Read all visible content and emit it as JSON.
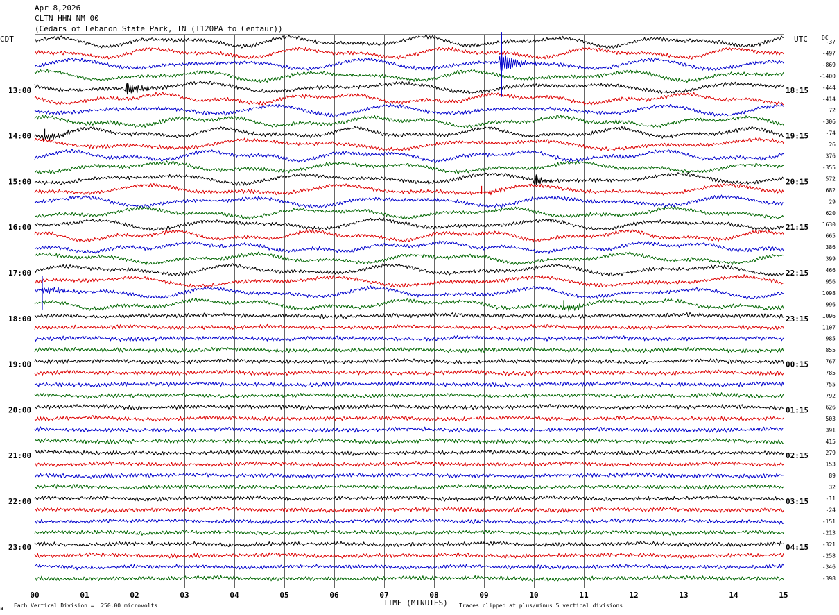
{
  "header": {
    "date": "Apr 8,2026",
    "station": "CLTN HHN NM 00",
    "location": "(Cedars of Lebanon State Park, TN (T120PA to Centaur))"
  },
  "labels": {
    "left_zone": "CDT",
    "right_zone": "UTC",
    "dc_header": "DC"
  },
  "footer": {
    "scale_note": "Each Vertical Division =  250.00 microvolts",
    "clip_note": "Traces clipped at plus/minus 5 vertical divisions",
    "marker": "a"
  },
  "colors": {
    "trace_cycle": [
      "#000000",
      "#dd0000",
      "#0000cc",
      "#006600"
    ],
    "grid": "#000000"
  },
  "chart_data": {
    "type": "line",
    "title": "",
    "xlabel": "TIME (MINUTES)",
    "x_ticks": [
      "00",
      "01",
      "02",
      "03",
      "04",
      "05",
      "06",
      "07",
      "08",
      "09",
      "10",
      "11",
      "12",
      "13",
      "14",
      "15"
    ],
    "xlim": [
      0,
      15
    ],
    "minutes_per_line": 15,
    "left_time_labels": [
      "13:00",
      "14:00",
      "15:00",
      "16:00",
      "17:00",
      "18:00",
      "19:00",
      "20:00",
      "21:00",
      "22:00",
      "23:00"
    ],
    "right_time_labels": [
      "18:15",
      "19:15",
      "20:15",
      "21:15",
      "22:15",
      "23:15",
      "00:15",
      "01:15",
      "02:15",
      "03:15",
      "04:15"
    ],
    "dc_offsets": [
      "-37",
      "-497",
      "-869",
      "-1400",
      "-444",
      "-414",
      "72",
      "-306",
      "-74",
      "26",
      "376",
      "-355",
      "572",
      "682",
      "29",
      "620",
      "1630",
      "665",
      "386",
      "399",
      "466",
      "956",
      "1098",
      "996",
      "1096",
      "1107",
      "985",
      "855",
      "767",
      "785",
      "755",
      "792",
      "626",
      "503",
      "391",
      "415",
      "279",
      "153",
      "89",
      "32",
      "-11",
      "-24",
      "-151",
      "-213",
      "-321",
      "-258",
      "-346",
      "-398"
    ],
    "trace_count": 48,
    "event_markers": [
      {
        "trace": 2,
        "minute": 9.35
      },
      {
        "trace": 4,
        "minute": 1.85
      },
      {
        "trace": 8,
        "minute": 0.2
      },
      {
        "trace": 12,
        "minute": 10.05
      },
      {
        "trace": 13,
        "minute": 8.95
      },
      {
        "trace": 22,
        "minute": 0.15
      },
      {
        "trace": 23,
        "minute": 10.6
      }
    ]
  }
}
